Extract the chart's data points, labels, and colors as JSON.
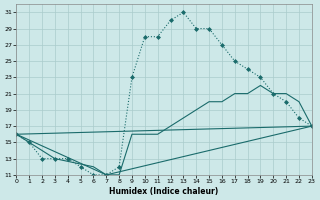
{
  "xlabel": "Humidex (Indice chaleur)",
  "xlim": [
    0,
    23
  ],
  "ylim": [
    11,
    32
  ],
  "yticks": [
    11,
    13,
    15,
    17,
    19,
    21,
    23,
    25,
    27,
    29,
    31
  ],
  "xticks": [
    0,
    1,
    2,
    3,
    4,
    5,
    6,
    7,
    8,
    9,
    10,
    11,
    12,
    13,
    14,
    15,
    16,
    17,
    18,
    19,
    20,
    21,
    22,
    23
  ],
  "bg_color": "#cde8e8",
  "grid_color": "#aacccc",
  "line_color": "#1a6b6b",
  "line1_x": [
    0,
    1,
    2,
    3,
    4,
    5,
    6,
    7,
    8,
    9,
    10,
    11,
    12,
    13,
    14,
    15,
    16,
    17,
    18,
    19,
    20,
    21,
    22,
    23
  ],
  "line1_y": [
    16,
    15,
    13,
    13,
    13,
    12,
    11,
    11,
    12,
    23,
    28,
    28,
    30,
    31,
    29,
    29,
    27,
    25,
    24,
    23,
    21,
    20,
    18,
    17
  ],
  "line2_x": [
    0,
    1,
    3,
    6,
    7,
    8,
    9,
    10,
    11,
    12,
    13,
    14,
    15,
    16,
    17,
    18,
    19,
    20,
    21,
    22,
    23
  ],
  "line2_y": [
    16,
    15,
    13,
    12,
    11,
    11,
    16,
    16,
    16,
    17,
    18,
    19,
    20,
    20,
    21,
    21,
    22,
    21,
    21,
    20,
    17
  ],
  "line3_x": [
    0,
    23
  ],
  "line3_y": [
    16,
    17
  ],
  "line4_x": [
    0,
    7,
    23
  ],
  "line4_y": [
    16,
    11,
    17
  ]
}
